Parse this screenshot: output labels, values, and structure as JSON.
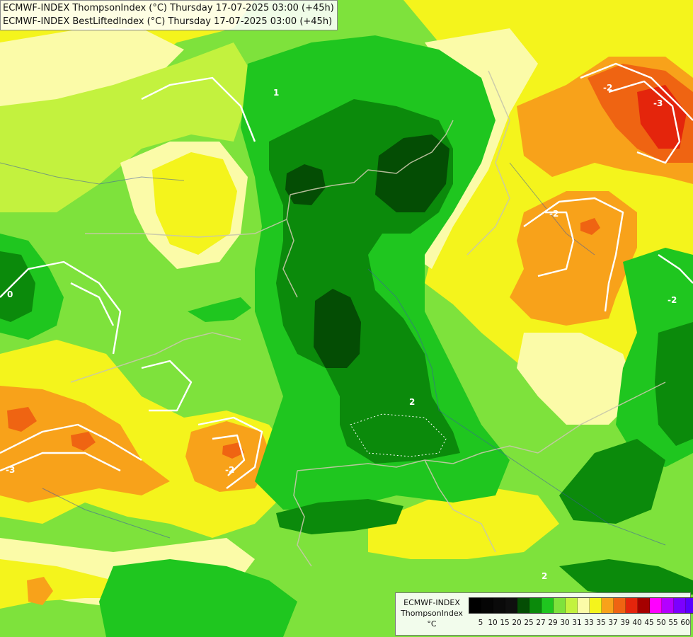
{
  "header": {
    "title_lines": [
      "ECMWF-INDEX ThompsonIndex (°C) Thursday 17-07-2025 03:00 (+45h)",
      "ECMWF-INDEX BestLiftedIndex (°C) Thursday 17-07-2025 03:00 (+45h)"
    ]
  },
  "map": {
    "colors": {
      "c25": "#0b8a0b",
      "c27": "#1fc61f",
      "c29": "#7ee23c",
      "c30": "#c3f23e",
      "c31": "#fbfba8",
      "c33": "#f4f41c",
      "c35": "#f8a21a",
      "c37": "#ef6412",
      "c39": "#e4250c",
      "c20": "#044d04",
      "contour": "#ffffff",
      "border": "#c8c8aa",
      "river": "#3c5aa8"
    },
    "lifted_index_labels": [
      "-3",
      "-2",
      "-2",
      "-2",
      "-3",
      "-2",
      "0",
      "2",
      "2",
      "1"
    ]
  },
  "legend": {
    "caption_lines": [
      "ECMWF-INDEX",
      "ThompsonIndex",
      "°C"
    ],
    "swatch_colors": [
      "#000000",
      "#050505",
      "#0a0a0a",
      "#0f0f0f",
      "#044d04",
      "#0b8a0b",
      "#1fc61f",
      "#7ee23c",
      "#c3f23e",
      "#fbfba8",
      "#f4f41c",
      "#f8a21a",
      "#ef6412",
      "#e4250c",
      "#a50000",
      "#ff00ff",
      "#b400ff",
      "#7b00ff",
      "#5a00ff",
      "#0000ff"
    ],
    "tick_labels": [
      "5",
      "10",
      "15",
      "20",
      "25",
      "27",
      "29",
      "30",
      "31",
      "33",
      "35",
      "37",
      "39",
      "40",
      "45",
      "50",
      "55",
      "60"
    ]
  }
}
